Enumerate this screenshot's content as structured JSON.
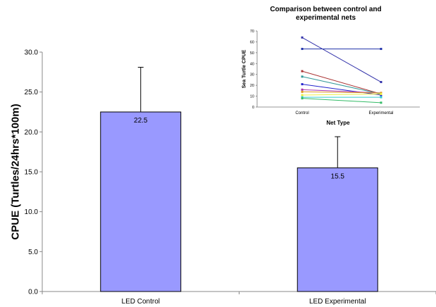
{
  "chart_data": [
    {
      "type": "bar",
      "title": "",
      "xlabel": "",
      "ylabel": "CPUE (Turtles/24hrs*100m)",
      "categories": [
        "LED Control",
        "LED Experimental"
      ],
      "values": [
        22.5,
        15.5
      ],
      "value_labels": [
        "22.5",
        "15.5"
      ],
      "error_upper": [
        28.1,
        19.4
      ],
      "ylim": [
        0,
        30
      ],
      "yticks": [
        "0.0",
        "5.0",
        "10.0",
        "15.0",
        "20.0",
        "25.0",
        "30.0"
      ],
      "ytick_values": [
        0,
        5,
        10,
        15,
        20,
        25,
        30
      ],
      "bar_color": "#9999ff",
      "grid": false
    },
    {
      "type": "line",
      "title": "Comparison between control and experimental nets",
      "xlabel": "Net Type",
      "ylabel": "Sea Turtle CPUE",
      "categories": [
        "Control",
        "Experimental"
      ],
      "ylim": [
        0,
        70
      ],
      "yticks": [
        "0",
        "10",
        "20",
        "30",
        "40",
        "50",
        "60",
        "70"
      ],
      "ytick_values": [
        0,
        10,
        20,
        30,
        40,
        50,
        60,
        70
      ],
      "series": [
        {
          "values": [
            64,
            23
          ],
          "color": "#3333aa"
        },
        {
          "values": [
            53.5,
            53.5
          ],
          "color": "#2233aa"
        },
        {
          "values": [
            33,
            12
          ],
          "color": "#aa3333"
        },
        {
          "values": [
            28,
            12
          ],
          "color": "#339999"
        },
        {
          "values": [
            21,
            11
          ],
          "color": "#2222cc"
        },
        {
          "values": [
            16,
            13
          ],
          "color": "#aa33aa"
        },
        {
          "values": [
            14,
            13
          ],
          "color": "#dd9922"
        },
        {
          "values": [
            11,
            12
          ],
          "color": "#eeee44"
        },
        {
          "values": [
            9,
            9
          ],
          "color": "#33cccc"
        },
        {
          "values": [
            8,
            4
          ],
          "color": "#33bb66"
        }
      ],
      "grid": false
    }
  ]
}
